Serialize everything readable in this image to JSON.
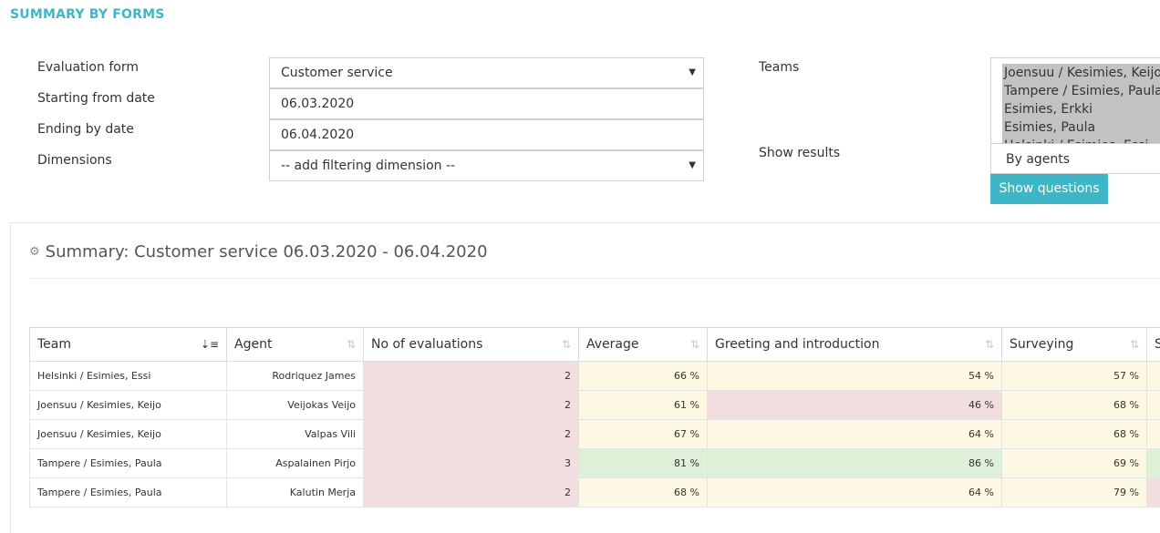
{
  "page": {
    "title": "SUMMARY BY FORMS"
  },
  "form": {
    "evaluation_form_label": "Evaluation form",
    "evaluation_form_value": "Customer service",
    "start_label": "Starting from date",
    "start_value": "06.03.2020",
    "end_label": "Ending by date",
    "end_value": "06.04.2020",
    "dimensions_label": "Dimensions",
    "dimensions_value": "-- add filtering dimension --",
    "teams_label": "Teams",
    "teams": [
      "Joensuu / Kesimies, Keijo",
      "Tampere / Esimies, Paula",
      "Esimies, Erkki",
      "Esimies, Paula",
      "Helsinki / Esimies, Essi"
    ],
    "show_results_label": "Show results",
    "show_results_value": "By agents",
    "show_questions_button": "Show questions"
  },
  "summary": {
    "title": "Summary: Customer service 06.03.2020 - 06.04.2020"
  },
  "table": {
    "columns": [
      "Team",
      "Agent",
      "No of evaluations",
      "Average",
      "Greeting and introduction",
      "Surveying",
      "S"
    ],
    "rows": [
      {
        "team": "Helsinki / Esimies, Essi",
        "agent": "Rodriquez James",
        "evaluations": "2",
        "average": "66 %",
        "greeting": "54 %",
        "surveying": "57 %"
      },
      {
        "team": "Joensuu / Kesimies, Keijo",
        "agent": "Veijokas Veijo",
        "evaluations": "2",
        "average": "61 %",
        "greeting": "46 %",
        "surveying": "68 %"
      },
      {
        "team": "Joensuu / Kesimies, Keijo",
        "agent": "Valpas Vili",
        "evaluations": "2",
        "average": "67 %",
        "greeting": "64 %",
        "surveying": "68 %"
      },
      {
        "team": "Tampere / Esimies, Paula",
        "agent": "Aspalainen Pirjo",
        "evaluations": "3",
        "average": "81 %",
        "greeting": "86 %",
        "surveying": "69 %"
      },
      {
        "team": "Tampere / Esimies, Paula",
        "agent": "Kalutin Merja",
        "evaluations": "2",
        "average": "68 %",
        "greeting": "64 %",
        "surveying": "79 %"
      }
    ]
  },
  "colors": {
    "accent": "#3fb6c6",
    "cell_red": "#f2dede",
    "cell_yellow": "#fcf8e3",
    "cell_green": "#dff0d8",
    "link": "#2f6ea5"
  }
}
